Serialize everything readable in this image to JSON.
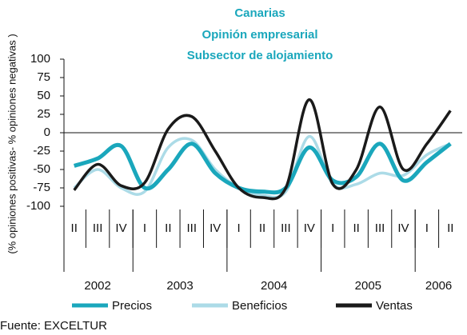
{
  "chart_data": {
    "type": "line",
    "title": [
      "Canarias",
      "Opinión empresarial",
      "Subsector de alojamiento"
    ],
    "y_label": "(% opiniones positivas- % opiniones negativas )",
    "categories": [
      "II",
      "III",
      "IV",
      "I",
      "II",
      "III",
      "IV",
      "I",
      "II",
      "III",
      "IV",
      "I",
      "II",
      "III",
      "IV",
      "I",
      "II"
    ],
    "x_groups": [
      {
        "label": "2002",
        "count": 3
      },
      {
        "label": "2003",
        "count": 4
      },
      {
        "label": "2004",
        "count": 4
      },
      {
        "label": "2005",
        "count": 4
      },
      {
        "label": "2006",
        "count": 2
      }
    ],
    "series": [
      {
        "name": "Precios",
        "color": "#1aa7bc",
        "values": [
          -45,
          -35,
          -18,
          -75,
          -50,
          -15,
          -55,
          -75,
          -80,
          -75,
          -20,
          -65,
          -60,
          -15,
          -65,
          -40,
          -15
        ]
      },
      {
        "name": "Beneficios",
        "color": "#acdbe7",
        "values": [
          -75,
          -50,
          -75,
          -80,
          -20,
          -10,
          -50,
          -75,
          -85,
          -80,
          -5,
          -70,
          -70,
          -55,
          -58,
          -30,
          -15
        ]
      },
      {
        "name": "Ventas",
        "color": "#1a1a1a",
        "values": [
          -78,
          -43,
          -72,
          -68,
          5,
          22,
          -25,
          -75,
          -88,
          -75,
          45,
          -70,
          -50,
          35,
          -50,
          -15,
          30
        ]
      }
    ],
    "ylim": [
      -100,
      100
    ],
    "yticks": [
      -100,
      -75,
      -50,
      -25,
      0,
      25,
      50,
      75,
      100
    ],
    "source": "Fuente: EXCELTUR"
  }
}
